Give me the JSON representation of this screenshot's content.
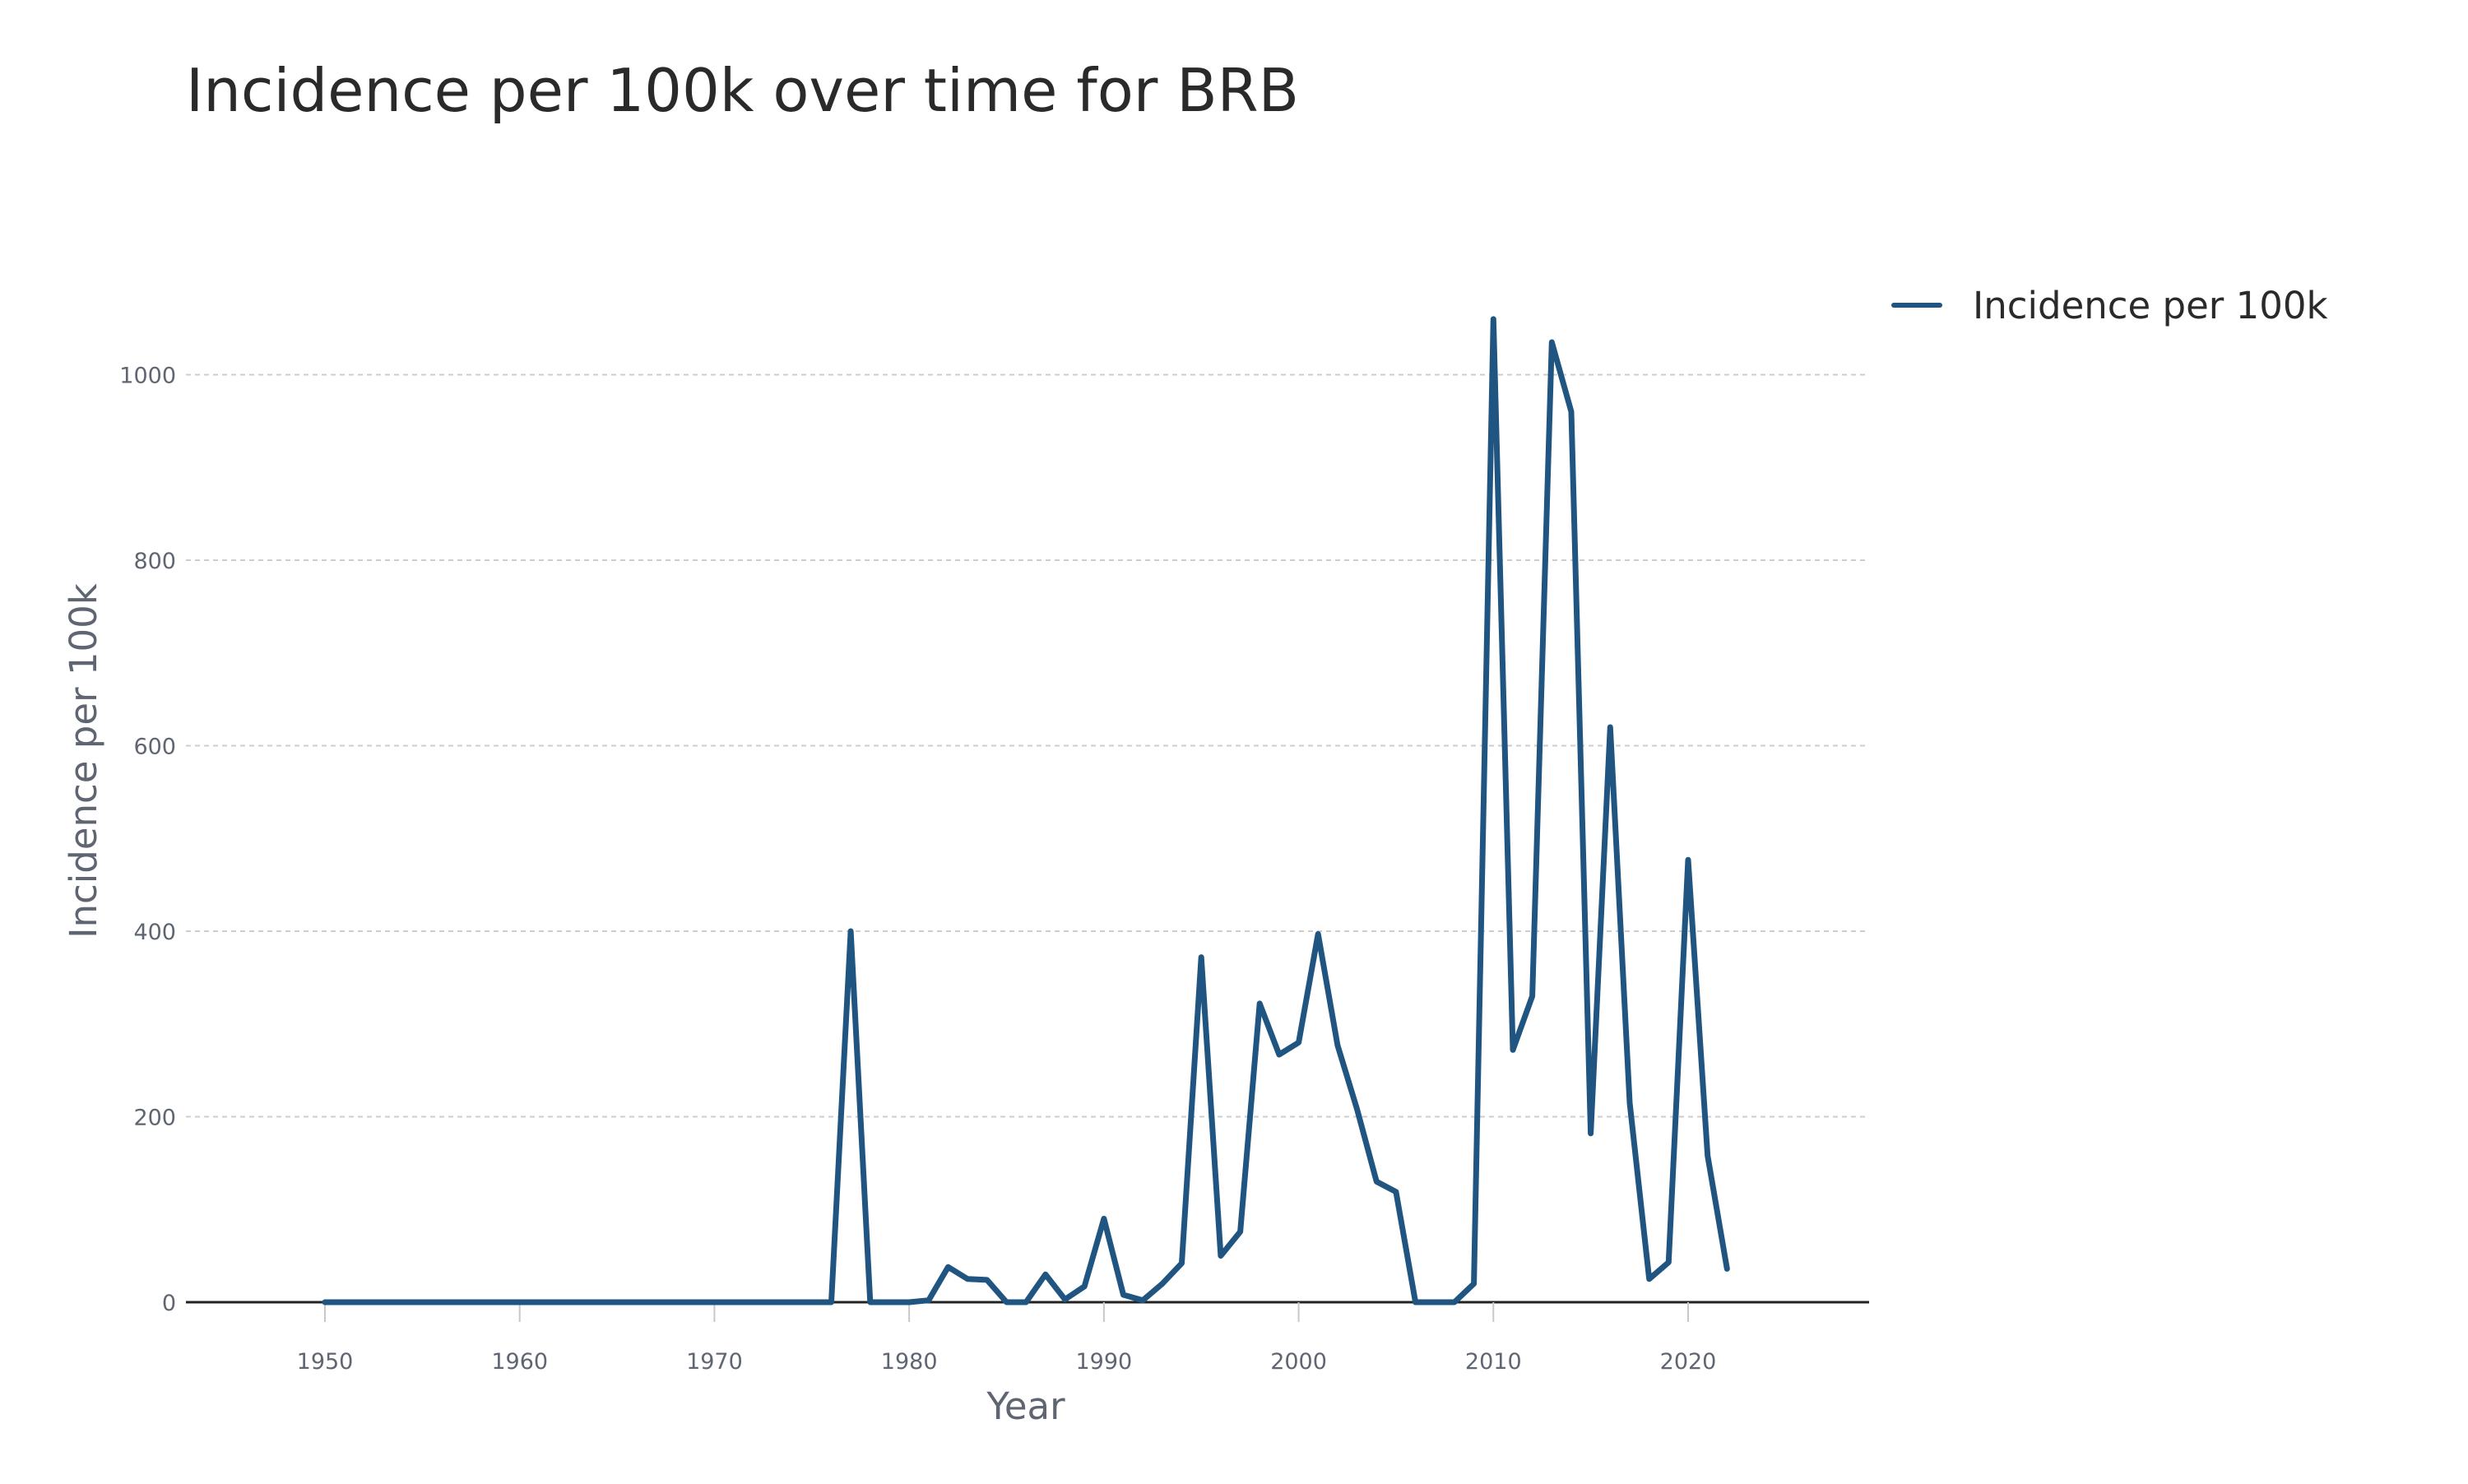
{
  "chart_data": {
    "type": "line",
    "title": "Incidence per 100k over time for BRB",
    "xlabel": "Year",
    "ylabel": "Incidence per 100k",
    "xlim": [
      1943,
      2029
    ],
    "ylim": [
      0,
      1110
    ],
    "x_ticks": [
      1950,
      1960,
      1970,
      1980,
      1990,
      2000,
      2010,
      2020
    ],
    "y_ticks": [
      0,
      200,
      400,
      600,
      800,
      1000
    ],
    "grid": "horizontal dashed",
    "legend_position": "top-right",
    "series": [
      {
        "name": "Incidence per 100k",
        "color": "#1f5580",
        "x": [
          1950,
          1951,
          1952,
          1953,
          1954,
          1955,
          1956,
          1957,
          1958,
          1959,
          1960,
          1961,
          1962,
          1963,
          1964,
          1965,
          1966,
          1967,
          1968,
          1969,
          1970,
          1971,
          1972,
          1973,
          1974,
          1975,
          1976,
          1977,
          1978,
          1979,
          1980,
          1981,
          1982,
          1983,
          1984,
          1985,
          1986,
          1987,
          1988,
          1989,
          1990,
          1991,
          1992,
          1993,
          1994,
          1995,
          1996,
          1997,
          1998,
          1999,
          2000,
          2001,
          2002,
          2003,
          2004,
          2005,
          2006,
          2007,
          2008,
          2009,
          2010,
          2011,
          2012,
          2013,
          2014,
          2015,
          2016,
          2017,
          2018,
          2019,
          2020,
          2021,
          2022
        ],
        "values": [
          0,
          0,
          0,
          0,
          0,
          0,
          0,
          0,
          0,
          0,
          0,
          0,
          0,
          0,
          0,
          0,
          0,
          0,
          0,
          0,
          0,
          0,
          0,
          0,
          0,
          0,
          0,
          400,
          0,
          0,
          0,
          2,
          38,
          25,
          24,
          0,
          0,
          30,
          3,
          17,
          90,
          8,
          2,
          20,
          42,
          372,
          50,
          76,
          322,
          267,
          280,
          397,
          277,
          208,
          130,
          119,
          0,
          0,
          0,
          20,
          1060,
          272,
          330,
          1035,
          960,
          182,
          620,
          215,
          25,
          43,
          477,
          158,
          36
        ]
      }
    ]
  }
}
